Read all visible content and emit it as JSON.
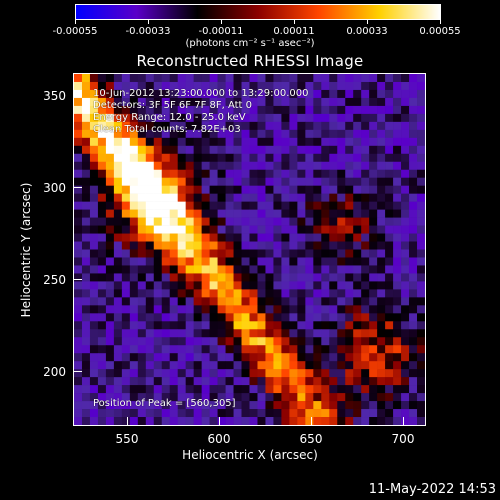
{
  "colorbar": {
    "ticks": [
      "-0.00055",
      "-0.00033",
      "-0.00011",
      "0.00011",
      "0.00033",
      "0.00055"
    ],
    "unit_label": "(photons cm⁻² s⁻¹ asec⁻²)",
    "colors": [
      "#0000ff",
      "#5a00c8",
      "#000000",
      "#8b0000",
      "#ff4500",
      "#ffd000",
      "#ffffff"
    ]
  },
  "plot": {
    "title": "Reconstructed RHESSI Image",
    "info_lines": [
      "10-Jun-2012 13:23:00.000 to 13:29:00.000",
      "Detectors: 3F 5F 6F 7F 8F, Att 0",
      "Energy Range: 12.0 - 25.0 keV",
      "Clean     Total counts: 7.82E+03"
    ],
    "peak_label": "Position of Peak = [560,305]",
    "xlabel": "Heliocentric X (arcsec)",
    "ylabel": "Heliocentric Y (arcsec)",
    "x_ticks": [
      "550",
      "600",
      "650",
      "700"
    ],
    "y_ticks": [
      "200",
      "250",
      "300",
      "350"
    ],
    "x_range": [
      520,
      710
    ],
    "y_range": [
      170,
      360
    ]
  },
  "timestamp": "11-May-2022 14:53"
}
